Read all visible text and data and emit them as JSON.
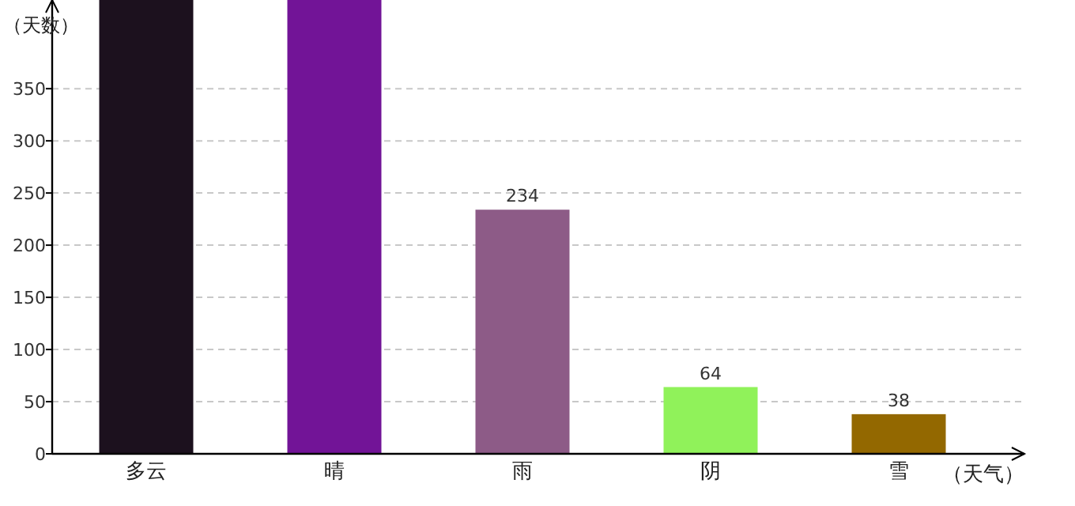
{
  "chart_data": {
    "type": "bar",
    "xlabel": "（天气）",
    "ylabel": "（天数）",
    "categories": [
      "多云",
      "晴",
      "雨",
      "阴",
      "雪"
    ],
    "values": [
      435,
      435,
      234,
      64,
      38
    ],
    "colors": [
      "#1c111e",
      "#721497",
      "#8d5b87",
      "#90f25a",
      "#936800"
    ],
    "value_labels": [
      null,
      null,
      "234",
      "64",
      "38"
    ],
    "ylim": [
      0,
      435
    ],
    "yticks": [
      0,
      50,
      100,
      150,
      200,
      250,
      300,
      350
    ],
    "grid": "y"
  }
}
